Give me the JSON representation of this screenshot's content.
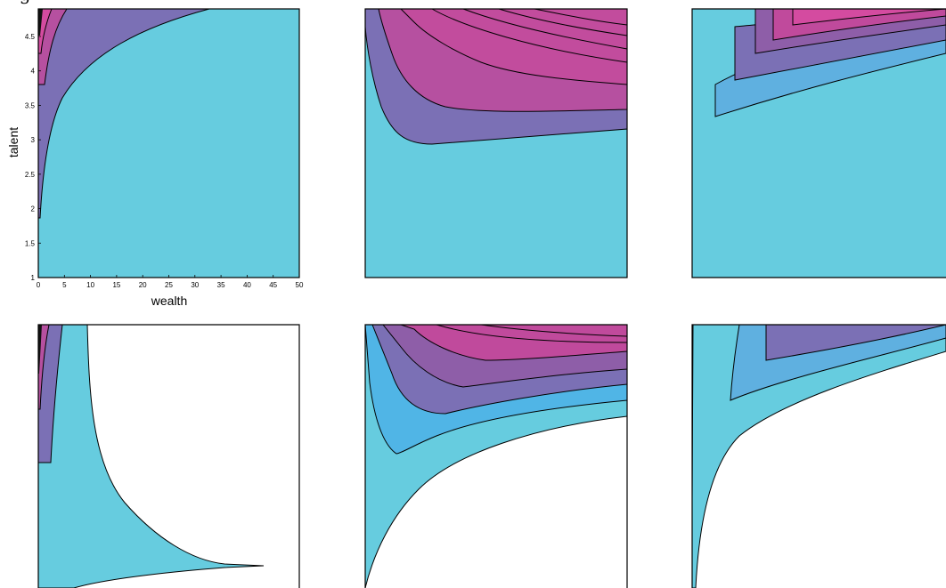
{
  "header_text": "f        g                               ",
  "palette": {
    "base": "#66ccdf",
    "mid_blue": "#5fb0e0",
    "violet": "#7b70b5",
    "purple": "#8e5ea8",
    "magenta": "#c04a9c",
    "pink": "#d44ba0",
    "white": "#ffffff"
  },
  "chart_data": [
    {
      "type": "contour",
      "panel": "top-left",
      "xlabel": "wealth",
      "ylabel": "talent",
      "xlim": [
        0,
        50
      ],
      "ylim": [
        1,
        4.9
      ],
      "xticks": [
        "0",
        "5",
        "10",
        "15",
        "20",
        "25",
        "30",
        "35",
        "40",
        "45",
        "50"
      ],
      "yticks": [
        "1",
        "1.5",
        "2",
        "2.5",
        "3",
        "3.5",
        "4",
        "4.5"
      ],
      "bands": [
        "light-blue",
        "violet",
        "magenta",
        "pink"
      ]
    },
    {
      "type": "contour",
      "panel": "top-middle",
      "xlabel": "",
      "ylabel": "",
      "bands": [
        "light-blue",
        "violet",
        "magenta",
        "pink"
      ]
    },
    {
      "type": "contour",
      "panel": "top-right",
      "xlabel": "",
      "ylabel": "",
      "bands": [
        "light-blue",
        "blue",
        "violet",
        "magenta"
      ]
    },
    {
      "type": "contour",
      "panel": "bottom-left",
      "xlabel": "",
      "ylabel": "",
      "bands": [
        "white",
        "light-blue",
        "violet",
        "magenta"
      ]
    },
    {
      "type": "contour",
      "panel": "bottom-middle",
      "xlabel": "",
      "ylabel": "",
      "bands": [
        "white",
        "light-blue",
        "blue",
        "violet",
        "magenta"
      ]
    },
    {
      "type": "contour",
      "panel": "bottom-right",
      "xlabel": "",
      "ylabel": "",
      "bands": [
        "white",
        "light-blue",
        "blue",
        "violet"
      ]
    }
  ]
}
